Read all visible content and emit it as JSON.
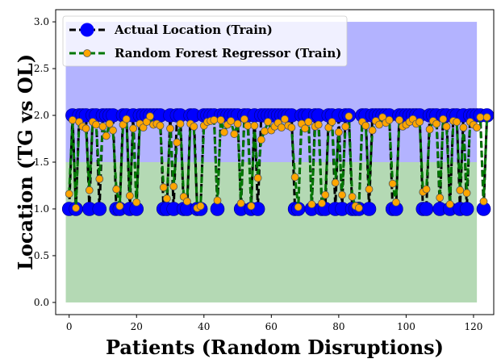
{
  "chart_data": {
    "type": "line",
    "title": "",
    "xlabel": "Patients (Random Disruptions)",
    "ylabel": "Location (TG vs OL)",
    "xlim": [
      -4,
      126
    ],
    "ylim": [
      -0.13,
      3.13
    ],
    "x_ticks": [
      0,
      20,
      40,
      60,
      80,
      100,
      120
    ],
    "y_ticks": [
      0.0,
      0.5,
      1.0,
      1.5,
      2.0,
      2.5,
      3.0
    ],
    "grid": false,
    "legend_position": "top-left",
    "bands": [
      {
        "from": 0.0,
        "to": 1.5,
        "x_from": -1,
        "x_to": 121,
        "color": "#b4d9b4"
      },
      {
        "from": 1.5,
        "to": 3.0,
        "x_from": -1,
        "x_to": 121,
        "color": "#b3b3ff"
      }
    ],
    "series": [
      {
        "name": "Actual Location (Train)",
        "color": "#0000ff",
        "line_color": "#000000",
        "values": [
          1,
          2,
          1,
          2,
          2,
          2,
          1,
          2,
          2,
          1,
          2,
          2,
          2,
          2,
          1,
          1,
          2,
          2,
          1,
          2,
          1,
          2,
          2,
          2,
          2,
          2,
          2,
          2,
          1,
          1,
          2,
          1,
          2,
          2,
          1,
          1,
          2,
          2,
          1,
          1,
          2,
          2,
          2,
          2,
          1,
          2,
          2,
          2,
          2,
          2,
          2,
          1,
          2,
          2,
          1,
          2,
          1,
          2,
          2,
          2,
          2,
          2,
          2,
          2,
          2,
          2,
          2,
          1,
          1,
          2,
          2,
          2,
          1,
          2,
          2,
          1,
          1,
          2,
          2,
          1,
          2,
          1,
          2,
          2,
          1,
          1,
          1,
          2,
          2,
          1,
          2,
          2,
          2,
          2,
          2,
          2,
          1,
          1,
          2,
          2,
          2,
          2,
          2,
          2,
          2,
          1,
          1,
          2,
          2,
          2,
          1,
          2,
          2,
          1,
          2,
          2,
          1,
          2,
          1,
          2,
          2,
          2,
          2,
          1,
          2
        ]
      },
      {
        "name": "Random Forest Regressor (Train)",
        "color": "#ffa500",
        "line_color": "#007700",
        "values": [
          1.16,
          1.95,
          1.01,
          1.93,
          1.88,
          1.86,
          1.2,
          1.93,
          1.9,
          1.32,
          1.88,
          1.78,
          1.91,
          1.84,
          1.21,
          1.03,
          1.9,
          1.96,
          1.14,
          1.86,
          1.07,
          1.91,
          1.87,
          1.93,
          1.99,
          1.9,
          1.91,
          1.89,
          1.23,
          1.11,
          1.86,
          1.24,
          1.71,
          1.91,
          1.13,
          1.08,
          1.91,
          1.88,
          1.01,
          1.03,
          1.89,
          1.93,
          1.94,
          1.95,
          1.09,
          1.95,
          1.82,
          1.9,
          1.94,
          1.8,
          1.91,
          1.06,
          1.96,
          1.89,
          1.03,
          1.89,
          1.33,
          1.74,
          1.83,
          1.93,
          1.84,
          1.88,
          1.92,
          1.87,
          1.96,
          1.89,
          1.87,
          1.34,
          1.02,
          1.91,
          1.86,
          1.93,
          1.05,
          1.88,
          1.9,
          1.06,
          1.15,
          1.87,
          1.93,
          1.28,
          1.82,
          1.15,
          1.88,
          1.99,
          1.13,
          1.03,
          1.01,
          1.93,
          1.89,
          1.21,
          1.84,
          1.94,
          1.9,
          1.98,
          1.92,
          1.95,
          1.27,
          1.07,
          1.95,
          1.88,
          1.9,
          1.93,
          1.96,
          1.91,
          1.93,
          1.18,
          1.21,
          1.85,
          1.94,
          1.91,
          1.12,
          1.96,
          1.88,
          1.05,
          1.94,
          1.93,
          1.2,
          1.87,
          1.17,
          1.93,
          1.9,
          1.87,
          1.98,
          1.08,
          1.98
        ]
      }
    ]
  }
}
